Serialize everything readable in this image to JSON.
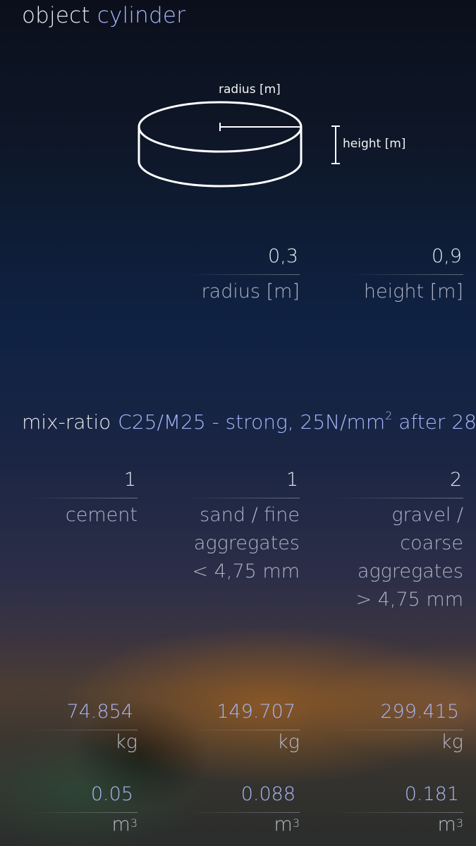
{
  "header": {
    "label": "object",
    "value": "cylinder"
  },
  "diagram": {
    "radius_label": "radius [m]",
    "height_label": "height [m]"
  },
  "inputs": [
    {
      "value": "0,3",
      "label": "radius [m]"
    },
    {
      "value": "0,9",
      "label": "height [m]"
    }
  ],
  "mix": {
    "label": "mix-ratio",
    "value_prefix": "C25/M25 - strong, 25N/mm",
    "value_sup": "2",
    "value_suffix": " after 28",
    "ratios": [
      {
        "value": "1",
        "label_lines": [
          "cement"
        ]
      },
      {
        "value": "1",
        "label_lines": [
          "sand / fine",
          "aggregates",
          "< 4,75 mm"
        ]
      },
      {
        "value": "2",
        "label_lines": [
          "gravel / coarse",
          "aggregates",
          "> 4,75 mm"
        ]
      }
    ]
  },
  "results": {
    "kg_unit": "kg",
    "m3_unit": "m",
    "m3_sup": "3",
    "kg": [
      "74.854",
      "149.707",
      "299.415"
    ],
    "m3": [
      "0.05",
      "0.088",
      "0.181"
    ]
  }
}
